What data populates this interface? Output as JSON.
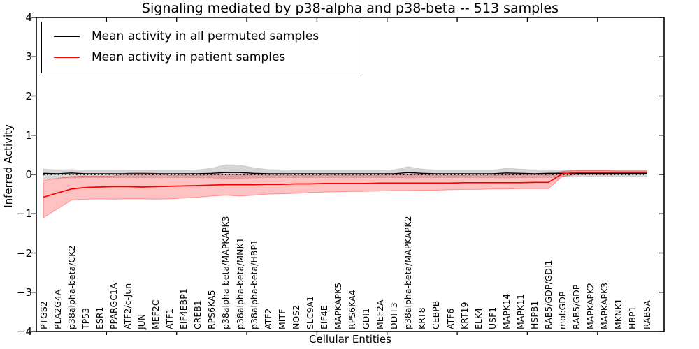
{
  "title": "Signaling mediated by p38-alpha and p38-beta -- 513 samples",
  "legend": [
    {
      "label": "Mean activity in all permuted samples",
      "color": "#000000"
    },
    {
      "label": "Mean activity in patient samples",
      "color": "#ff0000"
    }
  ],
  "colors": {
    "permuted_line": "#000000",
    "patient_line": "#ff0000",
    "permuted_band": "rgba(0,0,0,0.16)",
    "patient_band": "rgba(255,0,0,0.24)",
    "zero_line": "#000000",
    "background": "#ffffff"
  },
  "chart_data": {
    "type": "line",
    "title": "Signaling mediated by p38-alpha and p38-beta -- 513 samples",
    "xlabel": "Cellular Entities",
    "ylabel": "Inferred Activity",
    "ylim": [
      -4,
      4
    ],
    "yticks": [
      4,
      3,
      2,
      1,
      0,
      -1,
      -2,
      -3,
      -4
    ],
    "ytick_labels": [
      "4",
      "3",
      "2",
      "1",
      "0",
      "−1",
      "−2",
      "−3",
      "−4"
    ],
    "x_major_ticks": [
      5,
      10,
      15,
      20,
      25,
      30,
      35,
      40
    ],
    "grid": false,
    "legend_position": "upper left",
    "zero_line": {
      "style": "dotted",
      "y": 0,
      "color": "#000000"
    },
    "categories": [
      "PTGS2",
      "PLA2G4A",
      "p38alpha-beta/CK2",
      "TP53",
      "ESR1",
      "PPARGC1A",
      "ATF2/c-Jun",
      "JUN",
      "MEF2C",
      "ATF1",
      "EIF4EBP1",
      "CREB1",
      "RPS6KA5",
      "p38alpha-beta/MAPKAPK3",
      "p38alpha-beta/MNK1",
      "p38alpha-beta/HBP1",
      "ATF2",
      "MITF",
      "NOS2",
      "SLC9A1",
      "EIF4E",
      "MAPKAPK5",
      "RPS6KA4",
      "GDI1",
      "MEF2A",
      "DDIT3",
      "p38alpha-beta/MAPKAPK2",
      "KRT8",
      "CEBPB",
      "ATF6",
      "KRT19",
      "ELK4",
      "USF1",
      "MAPK14",
      "MAPK11",
      "HSPB1",
      "RAB5/GDP/GDI1",
      "mol:GDP",
      "RAB5/GDP",
      "MAPKAPK2",
      "MAPKAPK3",
      "MKNK1",
      "HBP1",
      "RAB5A"
    ],
    "series": [
      {
        "name": "Mean activity in all permuted samples",
        "color": "#000000",
        "band_fill": "rgba(0,0,0,0.16)",
        "band_edge": "rgba(0,0,0,0.10)",
        "values": [
          0.03,
          0.02,
          0.04,
          0.02,
          0.02,
          0.02,
          0.02,
          0.02,
          0.02,
          0.02,
          0.02,
          0.02,
          0.03,
          0.05,
          0.05,
          0.03,
          0.02,
          0.02,
          0.02,
          0.02,
          0.02,
          0.02,
          0.02,
          0.02,
          0.02,
          0.02,
          0.05,
          0.03,
          0.02,
          0.02,
          0.02,
          0.02,
          0.02,
          0.04,
          0.03,
          0.02,
          0.03,
          0.03,
          0.03,
          0.03,
          0.03,
          0.03,
          0.03,
          0.03
        ],
        "band_upper": [
          0.14,
          0.12,
          0.13,
          0.11,
          0.11,
          0.11,
          0.11,
          0.11,
          0.11,
          0.11,
          0.11,
          0.12,
          0.16,
          0.25,
          0.24,
          0.17,
          0.13,
          0.12,
          0.11,
          0.11,
          0.11,
          0.11,
          0.11,
          0.11,
          0.11,
          0.12,
          0.2,
          0.14,
          0.11,
          0.11,
          0.11,
          0.11,
          0.11,
          0.16,
          0.14,
          0.12,
          0.12,
          0.11,
          0.1,
          0.1,
          0.1,
          0.1,
          0.1,
          0.1
        ],
        "band_lower": [
          -0.12,
          -0.09,
          -0.09,
          -0.08,
          -0.08,
          -0.08,
          -0.08,
          -0.08,
          -0.08,
          -0.08,
          -0.08,
          -0.08,
          -0.09,
          -0.1,
          -0.1,
          -0.09,
          -0.08,
          -0.08,
          -0.08,
          -0.08,
          -0.08,
          -0.08,
          -0.08,
          -0.08,
          -0.08,
          -0.08,
          -0.09,
          -0.08,
          -0.08,
          -0.08,
          -0.08,
          -0.08,
          -0.08,
          -0.09,
          -0.08,
          -0.08,
          -0.08,
          -0.07,
          -0.06,
          -0.06,
          -0.06,
          -0.06,
          -0.06,
          -0.06
        ]
      },
      {
        "name": "Mean activity in patient samples",
        "color": "#ff0000",
        "band_fill": "rgba(255,0,0,0.24)",
        "band_edge": "rgba(255,0,0,0.35)",
        "values": [
          -0.58,
          -0.47,
          -0.37,
          -0.33,
          -0.32,
          -0.31,
          -0.31,
          -0.32,
          -0.31,
          -0.3,
          -0.29,
          -0.28,
          -0.27,
          -0.26,
          -0.26,
          -0.26,
          -0.25,
          -0.25,
          -0.24,
          -0.24,
          -0.23,
          -0.23,
          -0.23,
          -0.23,
          -0.22,
          -0.22,
          -0.22,
          -0.22,
          -0.22,
          -0.22,
          -0.21,
          -0.21,
          -0.21,
          -0.21,
          -0.21,
          -0.2,
          -0.2,
          0.02,
          0.05,
          0.05,
          0.05,
          0.05,
          0.05,
          0.05
        ],
        "band_upper": [
          -0.15,
          -0.1,
          -0.05,
          -0.04,
          -0.04,
          -0.04,
          0.04,
          0.05,
          0.03,
          -0.02,
          -0.02,
          -0.02,
          -0.01,
          -0.01,
          -0.01,
          -0.01,
          -0.02,
          -0.02,
          -0.02,
          -0.02,
          -0.02,
          -0.02,
          -0.02,
          -0.02,
          -0.02,
          -0.01,
          -0.01,
          -0.01,
          -0.02,
          -0.02,
          -0.02,
          -0.02,
          -0.02,
          -0.01,
          -0.01,
          -0.01,
          -0.01,
          0.08,
          0.1,
          0.1,
          0.1,
          0.09,
          0.09,
          0.09
        ],
        "band_lower": [
          -1.1,
          -0.88,
          -0.65,
          -0.63,
          -0.62,
          -0.63,
          -0.62,
          -0.62,
          -0.63,
          -0.62,
          -0.6,
          -0.58,
          -0.55,
          -0.53,
          -0.55,
          -0.53,
          -0.5,
          -0.49,
          -0.48,
          -0.46,
          -0.45,
          -0.44,
          -0.43,
          -0.43,
          -0.42,
          -0.41,
          -0.41,
          -0.4,
          -0.4,
          -0.39,
          -0.38,
          -0.38,
          -0.37,
          -0.37,
          -0.36,
          -0.36,
          -0.36,
          -0.05,
          0.0,
          0.0,
          0.0,
          0.01,
          0.01,
          0.01
        ]
      }
    ]
  }
}
